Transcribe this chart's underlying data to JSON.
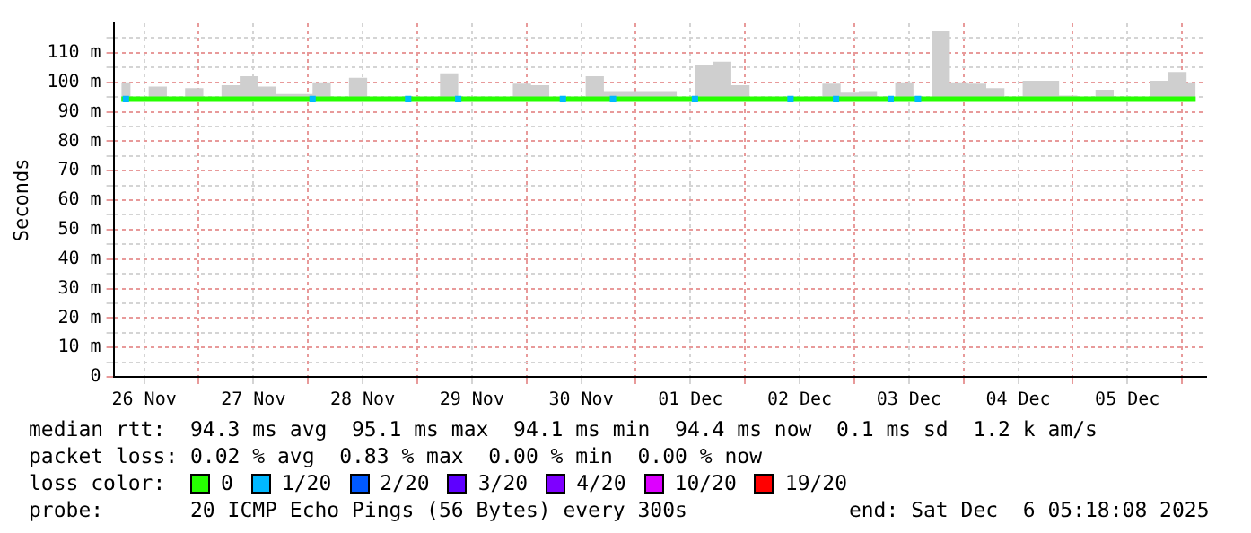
{
  "chart_data": {
    "type": "line",
    "ylabel": "Seconds",
    "legend_title": "loss color:",
    "legend": "bottom",
    "grid": true,
    "xlim": [
      "2025-11-26T05:18",
      "2025-12-06T05:18"
    ],
    "xticks": [
      {
        "value": "2025-11-26T12:00",
        "label": "26 Nov"
      },
      {
        "value": "2025-11-27T00:00",
        "label": null
      },
      {
        "value": "2025-11-27T12:00",
        "label": "27 Nov"
      },
      {
        "value": "2025-11-28T00:00",
        "label": null
      },
      {
        "value": "2025-11-28T12:00",
        "label": "28 Nov"
      },
      {
        "value": "2025-11-29T00:00",
        "label": null
      },
      {
        "value": "2025-11-29T12:00",
        "label": "29 Nov"
      },
      {
        "value": "2025-11-30T00:00",
        "label": null
      },
      {
        "value": "2025-11-30T12:00",
        "label": "30 Nov"
      },
      {
        "value": "2025-12-01T00:00",
        "label": null
      },
      {
        "value": "2025-12-01T12:00",
        "label": "01 Dec"
      },
      {
        "value": "2025-12-02T00:00",
        "label": null
      },
      {
        "value": "2025-12-02T12:00",
        "label": "02 Dec"
      },
      {
        "value": "2025-12-03T00:00",
        "label": null
      },
      {
        "value": "2025-12-03T12:00",
        "label": "03 Dec"
      },
      {
        "value": "2025-12-04T00:00",
        "label": null
      },
      {
        "value": "2025-12-04T12:00",
        "label": "04 Dec"
      },
      {
        "value": "2025-12-05T00:00",
        "label": null
      },
      {
        "value": "2025-12-05T12:00",
        "label": "05 Dec"
      },
      {
        "value": "2025-12-06T00:00",
        "label": null
      }
    ],
    "ylim": [
      0,
      120
    ],
    "yticks": [
      0,
      {
        "value": 5,
        "label": null
      },
      {
        "value": 10,
        "label": "10 m"
      },
      {
        "value": 15,
        "label": null
      },
      {
        "value": 20,
        "label": "20 m"
      },
      {
        "value": 25,
        "label": null
      },
      {
        "value": 30,
        "label": "30 m"
      },
      {
        "value": 35,
        "label": null
      },
      {
        "value": 40,
        "label": "40 m"
      },
      {
        "value": 45,
        "label": null
      },
      {
        "value": 50,
        "label": "50 m"
      },
      {
        "value": 55,
        "label": null
      },
      {
        "value": 60,
        "label": "60 m"
      },
      {
        "value": 65,
        "label": null
      },
      {
        "value": 70,
        "label": "70 m"
      },
      {
        "value": 75,
        "label": null
      },
      {
        "value": 80,
        "label": "80 m"
      },
      {
        "value": 85,
        "label": null
      },
      {
        "value": 90,
        "label": "90 m"
      },
      {
        "value": 95,
        "label": null
      },
      {
        "value": 100,
        "label": "100 m"
      },
      {
        "value": 105,
        "label": null
      },
      {
        "value": 110,
        "label": "110 m"
      },
      {
        "value": 115,
        "label": null
      }
    ],
    "x": [
      "2025-11-26T07:00",
      "2025-11-26T11:00",
      "2025-11-26T15:00",
      "2025-11-26T19:00",
      "2025-11-26T23:00",
      "2025-11-27T03:00",
      "2025-11-27T07:00",
      "2025-11-27T11:00",
      "2025-11-27T15:00",
      "2025-11-27T19:00",
      "2025-11-27T23:00",
      "2025-11-28T03:00",
      "2025-11-28T07:00",
      "2025-11-28T11:00",
      "2025-11-28T15:00",
      "2025-11-28T19:00",
      "2025-11-28T23:00",
      "2025-11-29T03:00",
      "2025-11-29T07:00",
      "2025-11-29T11:00",
      "2025-11-29T15:00",
      "2025-11-29T19:00",
      "2025-11-29T23:00",
      "2025-11-30T03:00",
      "2025-11-30T07:00",
      "2025-11-30T11:00",
      "2025-11-30T15:00",
      "2025-11-30T19:00",
      "2025-11-30T23:00",
      "2025-12-01T03:00",
      "2025-12-01T07:00",
      "2025-12-01T11:00",
      "2025-12-01T15:00",
      "2025-12-01T19:00",
      "2025-12-01T23:00",
      "2025-12-02T03:00",
      "2025-12-02T07:00",
      "2025-12-02T11:00",
      "2025-12-02T15:00",
      "2025-12-02T19:00",
      "2025-12-02T23:00",
      "2025-12-03T03:00",
      "2025-12-03T07:00",
      "2025-12-03T11:00",
      "2025-12-03T15:00",
      "2025-12-03T19:00",
      "2025-12-03T23:00",
      "2025-12-04T03:00",
      "2025-12-04T07:00",
      "2025-12-04T11:00",
      "2025-12-04T15:00",
      "2025-12-04T19:00",
      "2025-12-04T23:00",
      "2025-12-05T03:00",
      "2025-12-05T07:00",
      "2025-12-05T11:00",
      "2025-12-05T15:00",
      "2025-12-05T19:00",
      "2025-12-05T23:00",
      "2025-12-06T03:00"
    ],
    "series": [
      {
        "name": "0",
        "color": "#26ff00",
        "values": [
          94.3,
          94.3,
          94.3,
          94.3,
          94.3,
          94.3,
          94.3,
          94.3,
          94.3,
          94.3,
          94.3,
          94.3,
          94.3,
          94.3,
          94.3,
          94.3,
          94.3,
          94.3,
          94.3,
          94.3,
          94.3,
          94.3,
          94.3,
          94.3,
          94.3,
          94.3,
          94.3,
          94.3,
          94.3,
          94.3,
          94.3,
          94.3,
          94.3,
          94.3,
          94.3,
          94.3,
          94.3,
          94.3,
          94.3,
          94.3,
          94.3,
          94.3,
          94.3,
          94.3,
          94.3,
          94.3,
          94.3,
          94.3,
          94.3,
          94.3,
          94.3,
          94.3,
          94.3,
          94.3,
          94.3,
          94.3,
          94.3,
          94.3,
          94.3,
          94.3
        ],
        "lower": [
          93.5,
          93.5,
          93.5,
          93.5,
          93.5,
          93.5,
          93.5,
          93.5,
          93.5,
          93.5,
          93.5,
          93.5,
          93.5,
          93.5,
          93.5,
          93.5,
          93.5,
          93.5,
          93.5,
          93.5,
          93.5,
          93.5,
          93.5,
          93.5,
          93.5,
          93.5,
          93.5,
          93.5,
          93.5,
          93.5,
          93.5,
          93.5,
          93.5,
          93.5,
          93.5,
          93.5,
          93.5,
          93.5,
          93.5,
          93.5,
          93.5,
          93.5,
          93.5,
          93.5,
          93.5,
          93.5,
          93.5,
          93.5,
          93.5,
          93.5,
          93.5,
          93.5,
          93.5,
          93.5,
          93.5,
          93.5,
          93.5,
          93.5,
          93.5,
          93.5
        ],
        "upper": [
          100,
          95,
          98.5,
          95,
          98,
          95,
          99,
          102,
          98.5,
          96,
          96,
          100,
          95,
          101.5,
          95,
          95,
          94,
          94,
          103,
          95,
          95,
          94.5,
          99.5,
          99,
          94,
          95,
          102,
          97,
          97,
          97,
          97,
          94.5,
          106,
          107,
          99,
          94.5,
          95,
          95,
          95,
          99.5,
          96.5,
          97,
          94.5,
          100,
          95,
          117.5,
          100,
          99.5,
          98,
          95,
          100.5,
          100.5,
          95.5,
          95,
          97.5,
          95,
          94.5,
          100.5,
          103.5,
          100
        ]
      },
      {
        "name": "1/20",
        "type": "scatter",
        "marker": "square",
        "color": "#00b8ff",
        "x": [
          "2025-11-26T08:00",
          "2025-11-28T01:00",
          "2025-11-28T22:00",
          "2025-11-29T09:00",
          "2025-11-30T08:00",
          "2025-11-30T19:00",
          "2025-12-01T13:00",
          "2025-12-02T10:00",
          "2025-12-02T20:00",
          "2025-12-03T08:00",
          "2025-12-03T14:00"
        ],
        "values": [
          94.3,
          94.3,
          94.3,
          94.3,
          94.3,
          94.3,
          94.3,
          94.3,
          94.3,
          94.3,
          94.3
        ]
      },
      {
        "name": "2/20",
        "type": "scatter",
        "marker": "square",
        "color": "#0059ff",
        "values": [
          null,
          null,
          null,
          null,
          null,
          null,
          null,
          null,
          null,
          null,
          null,
          null,
          null,
          null,
          null,
          null,
          null,
          null,
          null,
          null,
          null,
          null,
          null,
          null,
          null,
          null,
          null,
          null,
          null,
          null,
          null,
          null,
          null,
          null,
          null,
          null,
          null,
          null,
          null,
          null,
          null,
          null,
          null,
          null,
          null,
          null,
          null,
          null,
          null,
          null,
          null,
          null,
          null,
          null,
          null,
          null,
          null,
          null,
          null,
          null
        ]
      },
      {
        "name": "3/20",
        "type": "scatter",
        "marker": "square",
        "color": "#5e00ff",
        "values": [
          null,
          null,
          null,
          null,
          null,
          null,
          null,
          null,
          null,
          null,
          null,
          null,
          null,
          null,
          null,
          null,
          null,
          null,
          null,
          null,
          null,
          null,
          null,
          null,
          null,
          null,
          null,
          null,
          null,
          null,
          null,
          null,
          null,
          null,
          null,
          null,
          null,
          null,
          null,
          null,
          null,
          null,
          null,
          null,
          null,
          null,
          null,
          null,
          null,
          null,
          null,
          null,
          null,
          null,
          null,
          null,
          null,
          null,
          null,
          null
        ]
      },
      {
        "name": "4/20",
        "type": "scatter",
        "marker": "square",
        "color": "#7e00ff",
        "values": [
          null,
          null,
          null,
          null,
          null,
          null,
          null,
          null,
          null,
          null,
          null,
          null,
          null,
          null,
          null,
          null,
          null,
          null,
          null,
          null,
          null,
          null,
          null,
          null,
          null,
          null,
          null,
          null,
          null,
          null,
          null,
          null,
          null,
          null,
          null,
          null,
          null,
          null,
          null,
          null,
          null,
          null,
          null,
          null,
          null,
          null,
          null,
          null,
          null,
          null,
          null,
          null,
          null,
          null,
          null,
          null,
          null,
          null,
          null,
          null
        ]
      },
      {
        "name": "10/20",
        "type": "scatter",
        "marker": "square",
        "color": "#dd00ff",
        "values": [
          null,
          null,
          null,
          null,
          null,
          null,
          null,
          null,
          null,
          null,
          null,
          null,
          null,
          null,
          null,
          null,
          null,
          null,
          null,
          null,
          null,
          null,
          null,
          null,
          null,
          null,
          null,
          null,
          null,
          null,
          null,
          null,
          null,
          null,
          null,
          null,
          null,
          null,
          null,
          null,
          null,
          null,
          null,
          null,
          null,
          null,
          null,
          null,
          null,
          null,
          null,
          null,
          null,
          null,
          null,
          null,
          null,
          null,
          null,
          null
        ]
      },
      {
        "name": "19/20",
        "type": "scatter",
        "marker": "square",
        "color": "#ff0000",
        "values": [
          null,
          null,
          null,
          null,
          null,
          null,
          null,
          null,
          null,
          null,
          null,
          null,
          null,
          null,
          null,
          null,
          null,
          null,
          null,
          null,
          null,
          null,
          null,
          null,
          null,
          null,
          null,
          null,
          null,
          null,
          null,
          null,
          null,
          null,
          null,
          null,
          null,
          null,
          null,
          null,
          null,
          null,
          null,
          null,
          null,
          null,
          null,
          null,
          null,
          null,
          null,
          null,
          null,
          null,
          null,
          null,
          null,
          null,
          null,
          null
        ]
      }
    ],
    "annotations": [
      "median rtt:  94.3 ms avg  95.1 ms max  94.1 ms min  94.4 ms now  0.1 ms sd  1.2 k am/s",
      "packet loss: 0.02 % avg  0.83 % max  0.00 % min  0.00 % now",
      "probe:       20 ICMP Echo Pings (56 Bytes) every 300s             end: Sat Dec  6 05:18:08 2025"
    ]
  }
}
